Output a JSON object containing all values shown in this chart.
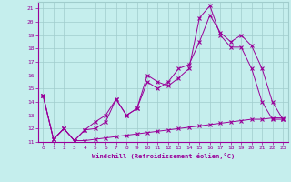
{
  "xlabel": "Windchill (Refroidissement éolien,°C)",
  "xlim": [
    -0.5,
    23.5
  ],
  "ylim": [
    11,
    21.5
  ],
  "yticks": [
    11,
    12,
    13,
    14,
    15,
    16,
    17,
    18,
    19,
    20,
    21
  ],
  "xticks": [
    0,
    1,
    2,
    3,
    4,
    5,
    6,
    7,
    8,
    9,
    10,
    11,
    12,
    13,
    14,
    15,
    16,
    17,
    18,
    19,
    20,
    21,
    22,
    23
  ],
  "background_color": "#c5eeed",
  "line_color": "#990099",
  "grid_color": "#a0cccc",
  "line1_x": [
    0,
    1,
    2,
    3,
    4,
    5,
    6,
    7,
    8,
    9,
    10,
    11,
    12,
    13,
    14,
    15,
    16,
    17,
    18,
    19,
    20,
    21,
    22,
    23
  ],
  "line1_y": [
    14.5,
    11.2,
    12.0,
    11.1,
    11.9,
    12.5,
    13.0,
    14.2,
    13.0,
    13.5,
    16.0,
    15.5,
    15.2,
    15.8,
    16.5,
    20.3,
    21.2,
    19.0,
    18.1,
    18.1,
    16.5,
    14.0,
    12.7,
    12.7
  ],
  "line2_x": [
    0,
    1,
    2,
    3,
    4,
    5,
    6,
    7,
    8,
    9,
    10,
    11,
    12,
    13,
    14,
    15,
    16,
    17,
    18,
    19,
    20,
    21,
    22,
    23
  ],
  "line2_y": [
    14.5,
    11.2,
    12.0,
    11.1,
    11.9,
    12.0,
    12.5,
    14.2,
    13.0,
    13.5,
    15.5,
    15.0,
    15.5,
    16.5,
    16.8,
    18.5,
    20.5,
    19.2,
    18.5,
    19.0,
    18.2,
    16.5,
    14.0,
    12.7
  ],
  "line3_x": [
    0,
    1,
    2,
    3,
    4,
    5,
    6,
    7,
    8,
    9,
    10,
    11,
    12,
    13,
    14,
    15,
    16,
    17,
    18,
    19,
    20,
    21,
    22,
    23
  ],
  "line3_y": [
    14.5,
    11.2,
    12.0,
    11.1,
    11.1,
    11.2,
    11.3,
    11.4,
    11.5,
    11.6,
    11.7,
    11.8,
    11.9,
    12.0,
    12.1,
    12.2,
    12.3,
    12.4,
    12.5,
    12.6,
    12.7,
    12.7,
    12.8,
    12.8
  ]
}
